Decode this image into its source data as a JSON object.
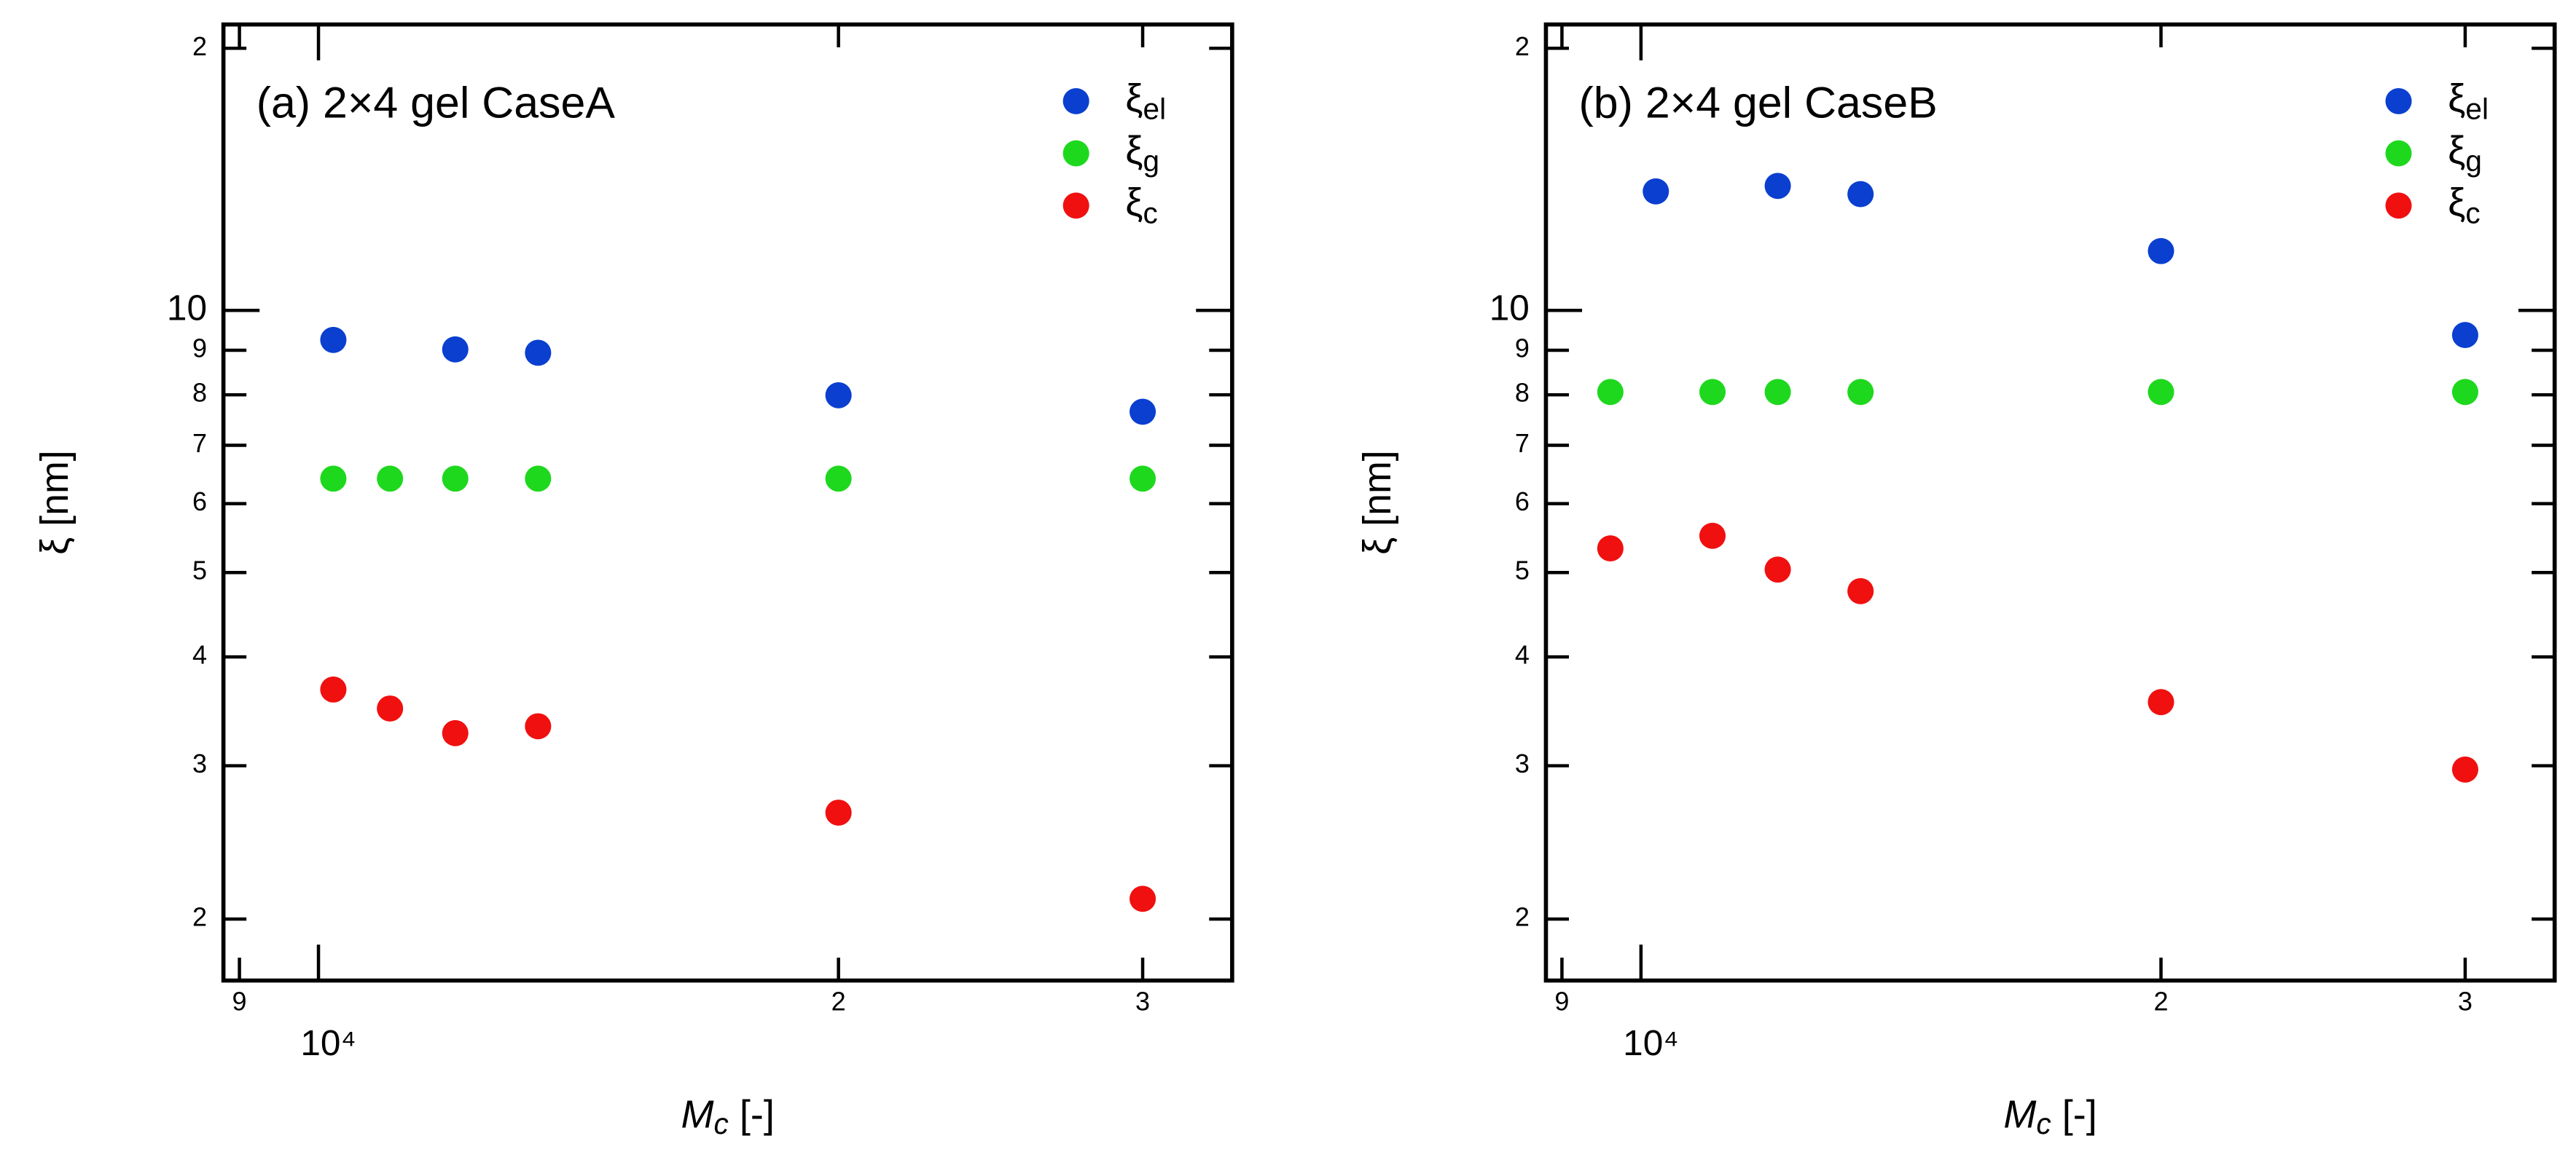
{
  "chart_data": [
    {
      "type": "scatter",
      "title": "(a) 2×4 gel CaseA",
      "xlabel": "Mc [-]",
      "ylabel": "ξ [nm]",
      "log_x": true,
      "log_y": true,
      "xlim": [
        8810,
        33800
      ],
      "ylim": [
        1.7,
        21.3
      ],
      "xticks": [
        {
          "value": 9000,
          "label": "9"
        },
        {
          "value": 10000,
          "label": "10⁴"
        },
        {
          "value": 20000,
          "label": "2"
        },
        {
          "value": 30000,
          "label": "3"
        }
      ],
      "yticks": [
        2,
        3,
        4,
        5,
        6,
        7,
        8,
        9,
        10,
        {
          "value": 20,
          "label": "2"
        }
      ],
      "series": [
        {
          "name": "ξel",
          "color": "#0a3fd0",
          "x": [
            10200,
            12000,
            13400,
            20000,
            30000
          ],
          "values": [
            9.25,
            9.02,
            8.94,
            7.99,
            7.65
          ]
        },
        {
          "name": "ξg",
          "color": "#1ed81e",
          "x": [
            10200,
            11000,
            12000,
            13400,
            20000,
            30000
          ],
          "values": [
            6.41,
            6.41,
            6.41,
            6.41,
            6.41,
            6.41
          ]
        },
        {
          "name": "ξc",
          "color": "#f01010",
          "x": [
            10200,
            11000,
            12000,
            13400,
            20000,
            30000
          ],
          "values": [
            3.67,
            3.49,
            3.27,
            3.33,
            2.65,
            2.11
          ]
        }
      ]
    },
    {
      "type": "scatter",
      "title": "(b) 2×4 gel CaseB",
      "xlabel": "Mc [-]",
      "ylabel": "ξ [nm]",
      "log_x": true,
      "log_y": true,
      "xlim": [
        8810,
        33800
      ],
      "ylim": [
        1.7,
        21.3
      ],
      "xticks": [
        {
          "value": 9000,
          "label": "9"
        },
        {
          "value": 10000,
          "label": "10⁴"
        },
        {
          "value": 20000,
          "label": "2"
        },
        {
          "value": 30000,
          "label": "3"
        }
      ],
      "yticks": [
        2,
        3,
        4,
        5,
        6,
        7,
        8,
        9,
        10,
        {
          "value": 20,
          "label": "2"
        }
      ],
      "series": [
        {
          "name": "ξel",
          "color": "#0a3fd0",
          "x": [
            10200,
            12000,
            13400,
            20000,
            30000
          ],
          "values": [
            13.7,
            13.9,
            13.6,
            11.7,
            9.37
          ]
        },
        {
          "name": "ξg",
          "color": "#1ed81e",
          "x": [
            9600,
            11000,
            12000,
            13400,
            20000,
            30000
          ],
          "values": [
            8.06,
            8.06,
            8.06,
            8.06,
            8.06,
            8.06
          ]
        },
        {
          "name": "ξc",
          "color": "#f01010",
          "x": [
            9600,
            11000,
            12000,
            13400,
            20000,
            30000
          ],
          "values": [
            5.33,
            5.51,
            5.04,
            4.76,
            3.55,
            2.97
          ]
        }
      ]
    }
  ]
}
